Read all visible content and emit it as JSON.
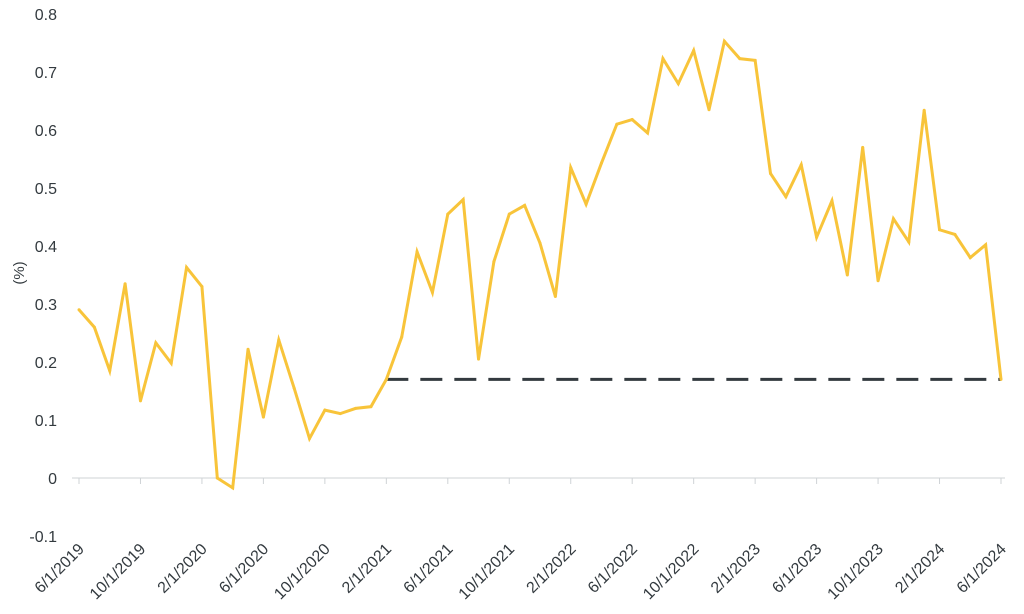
{
  "chart_data": {
    "type": "line",
    "title": "",
    "xlabel": "",
    "ylabel": "(%)",
    "ylim": [
      -0.1,
      0.8
    ],
    "yticks": [
      "-0.1",
      "0",
      "0.1",
      "0.2",
      "0.3",
      "0.4",
      "0.5",
      "0.6",
      "0.7",
      "0.8"
    ],
    "xtick_labels": [
      "6/1/2019",
      "10/1/2019",
      "2/1/2020",
      "6/1/2020",
      "10/1/2020",
      "2/1/2021",
      "6/1/2021",
      "10/1/2021",
      "2/1/2022",
      "6/1/2022",
      "10/1/2022",
      "2/1/2023",
      "6/1/2023",
      "10/1/2023",
      "2/1/2024",
      "6/1/2024"
    ],
    "x": [
      "6/1/2019",
      "7/1/2019",
      "8/1/2019",
      "9/1/2019",
      "10/1/2019",
      "11/1/2019",
      "12/1/2019",
      "1/1/2020",
      "2/1/2020",
      "3/1/2020",
      "4/1/2020",
      "5/1/2020",
      "6/1/2020",
      "7/1/2020",
      "8/1/2020",
      "9/1/2020",
      "10/1/2020",
      "11/1/2020",
      "12/1/2020",
      "1/1/2021",
      "2/1/2021",
      "3/1/2021",
      "4/1/2021",
      "5/1/2021",
      "6/1/2021",
      "7/1/2021",
      "8/1/2021",
      "9/1/2021",
      "10/1/2021",
      "11/1/2021",
      "12/1/2021",
      "1/1/2022",
      "2/1/2022",
      "3/1/2022",
      "4/1/2022",
      "5/1/2022",
      "6/1/2022",
      "7/1/2022",
      "8/1/2022",
      "9/1/2022",
      "10/1/2022",
      "11/1/2022",
      "12/1/2022",
      "1/1/2023",
      "2/1/2023",
      "3/1/2023",
      "4/1/2023",
      "5/1/2023",
      "6/1/2023",
      "7/1/2023",
      "8/1/2023",
      "9/1/2023",
      "10/1/2023",
      "11/1/2023",
      "12/1/2023",
      "1/1/2024",
      "2/1/2024",
      "3/1/2024",
      "4/1/2024",
      "5/1/2024",
      "6/1/2024"
    ],
    "series": [
      {
        "values": [
          0.29,
          0.26,
          0.185,
          0.335,
          0.133,
          0.233,
          0.198,
          0.363,
          0.33,
          0.0,
          -0.017,
          0.222,
          0.105,
          0.238,
          0.155,
          0.068,
          0.117,
          0.111,
          0.12,
          0.123,
          0.17,
          0.243,
          0.39,
          0.32,
          0.455,
          0.48,
          0.205,
          0.373,
          0.455,
          0.47,
          0.405,
          0.313,
          0.535,
          0.472,
          0.543,
          0.61,
          0.618,
          0.595,
          0.723,
          0.68,
          0.737,
          0.635,
          0.753,
          0.723,
          0.72,
          0.525,
          0.485,
          0.54,
          0.415,
          0.478,
          0.35,
          0.57,
          0.34,
          0.447,
          0.407,
          0.634,
          0.428,
          0.42,
          0.38,
          0.402,
          0.17
        ],
        "color": "#f8c43a"
      }
    ],
    "reference_line": {
      "value": 0.17,
      "start": "2/1/2021",
      "end": "6/1/2024",
      "style": "dashed",
      "color": "#333a3f"
    },
    "grid": false,
    "legend": "none"
  }
}
